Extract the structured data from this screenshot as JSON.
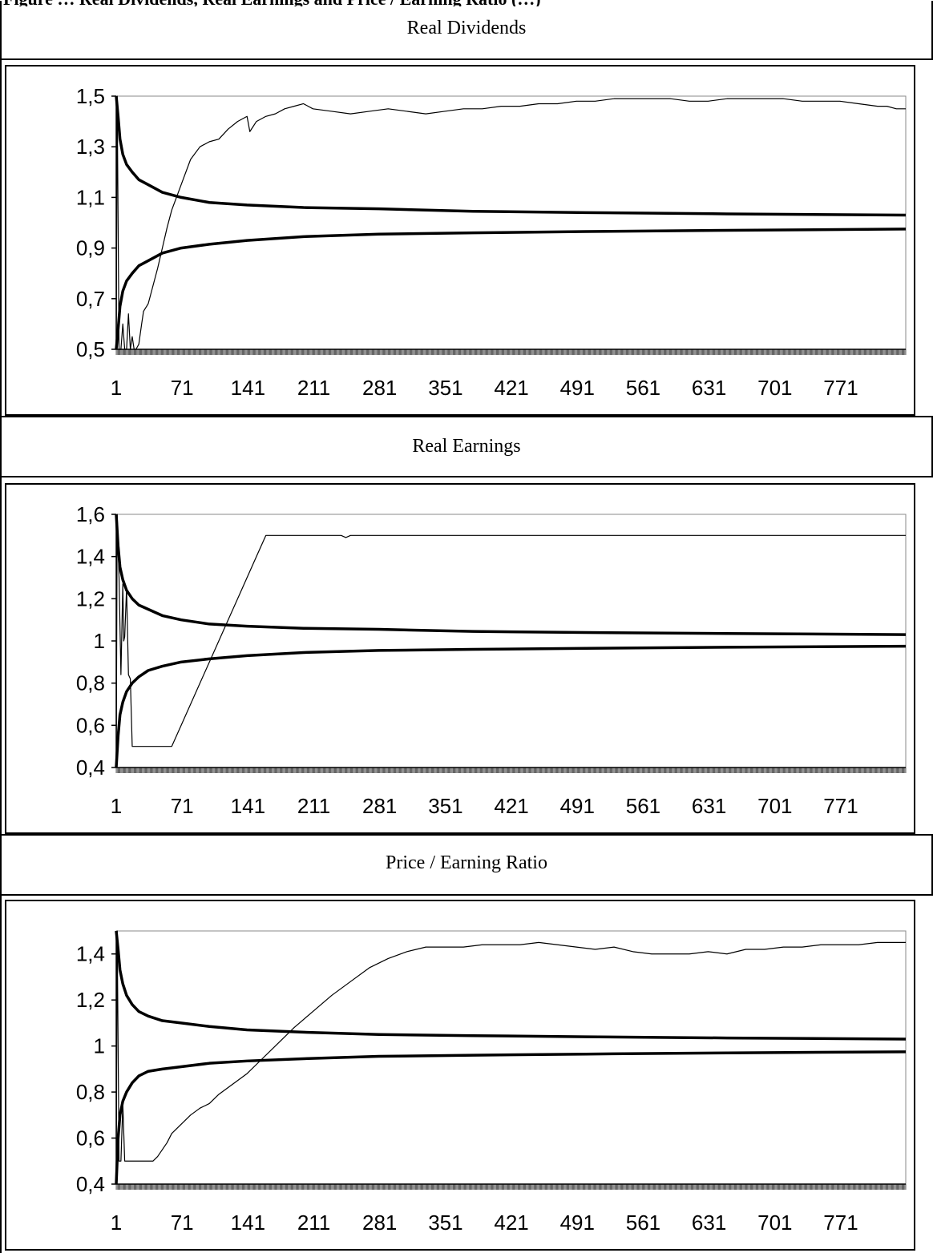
{
  "page_title": "Figure … Real Dividends, Real Earnings and Price / Earning Ratio (…)",
  "chart_data": [
    {
      "type": "line",
      "title": "Real Dividends",
      "xlabel": "",
      "ylabel": "",
      "ylim": [
        0.5,
        1.5
      ],
      "yticks": [
        "1,5",
        "1,3",
        "1,1",
        "0,9",
        "0,7",
        "0,5"
      ],
      "ytick_values": [
        1.5,
        1.3,
        1.1,
        0.9,
        0.7,
        0.5
      ],
      "xticks": [
        "1",
        "71",
        "141",
        "211",
        "281",
        "351",
        "421",
        "491",
        "561",
        "631",
        "701",
        "771"
      ],
      "xlim": [
        1,
        840
      ],
      "grid": false,
      "series": [
        {
          "x": [
            1,
            3,
            5,
            8,
            12,
            18,
            25,
            35,
            50,
            70,
            100,
            140,
            200,
            280,
            380,
            500,
            650,
            840
          ],
          "values": [
            1.5,
            1.42,
            1.33,
            1.27,
            1.23,
            1.2,
            1.17,
            1.15,
            1.12,
            1.1,
            1.08,
            1.07,
            1.06,
            1.055,
            1.045,
            1.04,
            1.035,
            1.03
          ]
        },
        {
          "x": [
            1,
            3,
            5,
            8,
            12,
            18,
            25,
            35,
            50,
            70,
            100,
            140,
            200,
            280,
            380,
            500,
            650,
            840
          ],
          "values": [
            0.5,
            0.58,
            0.67,
            0.73,
            0.77,
            0.8,
            0.83,
            0.85,
            0.88,
            0.9,
            0.915,
            0.93,
            0.945,
            0.955,
            0.96,
            0.965,
            0.97,
            0.975
          ]
        },
        {
          "x": [
            1,
            2,
            4,
            6,
            8,
            10,
            12,
            14,
            16,
            18,
            20,
            22,
            25,
            28,
            30,
            35,
            40,
            45,
            50,
            55,
            60,
            65,
            70,
            80,
            90,
            100,
            110,
            120,
            130,
            140,
            143,
            150,
            160,
            170,
            180,
            190,
            200,
            210,
            230,
            250,
            270,
            290,
            310,
            330,
            350,
            370,
            390,
            410,
            430,
            450,
            470,
            490,
            510,
            530,
            550,
            570,
            590,
            610,
            630,
            650,
            670,
            690,
            710,
            730,
            750,
            770,
            790,
            810,
            820,
            830,
            840
          ],
          "values": [
            0.5,
            1.5,
            0.5,
            0.5,
            0.6,
            0.5,
            0.5,
            0.64,
            0.5,
            0.55,
            0.5,
            0.5,
            0.52,
            0.6,
            0.65,
            0.68,
            0.75,
            0.82,
            0.9,
            0.98,
            1.05,
            1.1,
            1.15,
            1.25,
            1.3,
            1.32,
            1.33,
            1.37,
            1.4,
            1.42,
            1.36,
            1.4,
            1.42,
            1.43,
            1.45,
            1.46,
            1.47,
            1.45,
            1.44,
            1.43,
            1.44,
            1.45,
            1.44,
            1.43,
            1.44,
            1.45,
            1.45,
            1.46,
            1.46,
            1.47,
            1.47,
            1.48,
            1.48,
            1.49,
            1.49,
            1.49,
            1.49,
            1.48,
            1.48,
            1.49,
            1.49,
            1.49,
            1.49,
            1.48,
            1.48,
            1.48,
            1.47,
            1.46,
            1.46,
            1.45,
            1.45
          ]
        }
      ]
    },
    {
      "type": "line",
      "title": "Real Earnings",
      "xlabel": "",
      "ylabel": "",
      "ylim": [
        0.4,
        1.6
      ],
      "yticks": [
        "1,6",
        "1,4",
        "1,2",
        "1",
        "0,8",
        "0,6",
        "0,4"
      ],
      "ytick_values": [
        1.6,
        1.4,
        1.2,
        1.0,
        0.8,
        0.6,
        0.4
      ],
      "xticks": [
        "1",
        "71",
        "141",
        "211",
        "281",
        "351",
        "421",
        "491",
        "561",
        "631",
        "701",
        "771"
      ],
      "xlim": [
        1,
        840
      ],
      "grid": false,
      "series": [
        {
          "x": [
            1,
            3,
            5,
            8,
            12,
            18,
            25,
            35,
            50,
            70,
            100,
            140,
            200,
            280,
            380,
            500,
            650,
            840
          ],
          "values": [
            1.6,
            1.45,
            1.35,
            1.29,
            1.24,
            1.2,
            1.17,
            1.15,
            1.12,
            1.1,
            1.08,
            1.07,
            1.06,
            1.055,
            1.045,
            1.04,
            1.035,
            1.03
          ]
        },
        {
          "x": [
            1,
            3,
            5,
            8,
            12,
            18,
            25,
            35,
            50,
            70,
            100,
            140,
            200,
            280,
            380,
            500,
            650,
            840
          ],
          "values": [
            0.4,
            0.55,
            0.65,
            0.71,
            0.76,
            0.8,
            0.83,
            0.86,
            0.88,
            0.9,
            0.915,
            0.93,
            0.945,
            0.955,
            0.96,
            0.965,
            0.97,
            0.975
          ]
        },
        {
          "x": [
            1,
            2,
            4,
            6,
            8,
            9,
            10,
            12,
            14,
            16,
            18,
            20,
            25,
            30,
            40,
            50,
            55,
            60,
            65,
            70,
            80,
            90,
            100,
            110,
            120,
            130,
            140,
            150,
            160,
            200,
            240,
            245,
            250,
            260,
            300,
            400,
            500,
            600,
            700,
            840
          ],
          "values": [
            0.4,
            1.6,
            1.3,
            0.84,
            1.27,
            1.0,
            1.02,
            1.25,
            0.84,
            0.82,
            0.5,
            0.5,
            0.5,
            0.5,
            0.5,
            0.5,
            0.5,
            0.5,
            0.55,
            0.6,
            0.7,
            0.8,
            0.9,
            1.0,
            1.1,
            1.2,
            1.3,
            1.4,
            1.5,
            1.5,
            1.5,
            1.49,
            1.5,
            1.5,
            1.5,
            1.5,
            1.5,
            1.5,
            1.5,
            1.5
          ]
        }
      ]
    },
    {
      "type": "line",
      "title": "Price / Earning Ratio",
      "xlabel": "",
      "ylabel": "",
      "ylim": [
        0.4,
        1.5
      ],
      "yticks": [
        "1,4",
        "1,2",
        "1",
        "0,8",
        "0,6",
        "0,4"
      ],
      "ytick_values": [
        1.4,
        1.2,
        1.0,
        0.8,
        0.6,
        0.4
      ],
      "xticks": [
        "1",
        "71",
        "141",
        "211",
        "281",
        "351",
        "421",
        "491",
        "561",
        "631",
        "701",
        "771"
      ],
      "xlim": [
        1,
        840
      ],
      "grid": false,
      "series": [
        {
          "x": [
            1,
            3,
            5,
            8,
            12,
            18,
            25,
            35,
            50,
            70,
            100,
            140,
            200,
            280,
            380,
            500,
            650,
            840
          ],
          "values": [
            1.5,
            1.42,
            1.33,
            1.27,
            1.22,
            1.18,
            1.15,
            1.13,
            1.11,
            1.1,
            1.085,
            1.07,
            1.06,
            1.05,
            1.045,
            1.04,
            1.035,
            1.03
          ]
        },
        {
          "x": [
            1,
            3,
            5,
            8,
            12,
            18,
            25,
            35,
            50,
            70,
            100,
            140,
            200,
            280,
            380,
            500,
            650,
            840
          ],
          "values": [
            0.4,
            0.6,
            0.7,
            0.76,
            0.8,
            0.84,
            0.87,
            0.89,
            0.9,
            0.91,
            0.925,
            0.935,
            0.945,
            0.955,
            0.96,
            0.965,
            0.97,
            0.975
          ]
        },
        {
          "x": [
            1,
            2,
            4,
            6,
            8,
            10,
            12,
            15,
            20,
            30,
            40,
            45,
            50,
            55,
            60,
            70,
            80,
            90,
            100,
            110,
            120,
            130,
            140,
            150,
            170,
            190,
            210,
            230,
            250,
            270,
            290,
            310,
            330,
            350,
            370,
            390,
            410,
            430,
            450,
            470,
            490,
            510,
            530,
            550,
            570,
            590,
            610,
            630,
            650,
            670,
            690,
            710,
            730,
            750,
            770,
            790,
            810,
            830,
            840
          ],
          "values": [
            0.4,
            1.5,
            0.5,
            0.5,
            0.75,
            0.5,
            0.5,
            0.5,
            0.5,
            0.5,
            0.5,
            0.52,
            0.55,
            0.58,
            0.62,
            0.66,
            0.7,
            0.73,
            0.75,
            0.79,
            0.82,
            0.85,
            0.88,
            0.92,
            1.0,
            1.08,
            1.15,
            1.22,
            1.28,
            1.34,
            1.38,
            1.41,
            1.43,
            1.43,
            1.43,
            1.44,
            1.44,
            1.44,
            1.45,
            1.44,
            1.43,
            1.42,
            1.43,
            1.41,
            1.4,
            1.4,
            1.4,
            1.41,
            1.4,
            1.42,
            1.42,
            1.43,
            1.43,
            1.44,
            1.44,
            1.44,
            1.45,
            1.45,
            1.45
          ]
        }
      ]
    }
  ]
}
